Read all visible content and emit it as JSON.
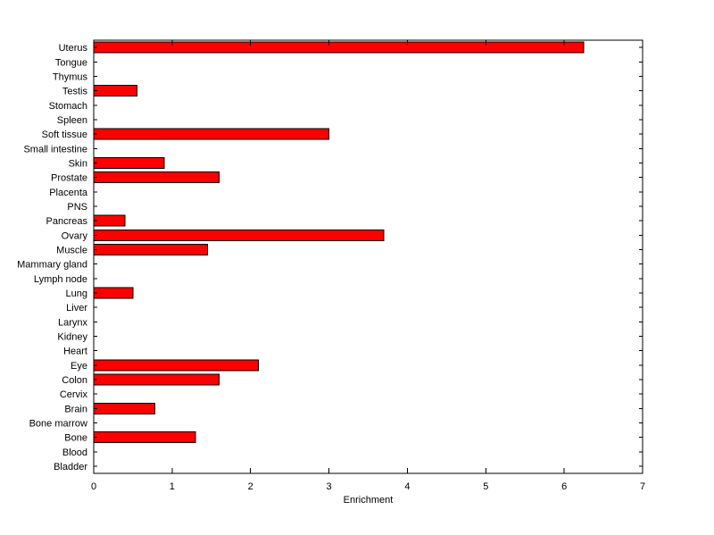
{
  "figure": {
    "background": "#ffffff"
  },
  "chart_data": {
    "type": "bar",
    "orientation": "horizontal",
    "title": "",
    "xlabel": "Enrichment",
    "ylabel": "",
    "categories": [
      "Uterus",
      "Tongue",
      "Thymus",
      "Testis",
      "Stomach",
      "Spleen",
      "Soft tissue",
      "Small intestine",
      "Skin",
      "Prostate",
      "Placenta",
      "PNS",
      "Pancreas",
      "Ovary",
      "Muscle",
      "Mammary gland",
      "Lymph node",
      "Lung",
      "Liver",
      "Larynx",
      "Kidney",
      "Heart",
      "Eye",
      "Colon",
      "Cervix",
      "Brain",
      "Bone marrow",
      "Bone",
      "Blood",
      "Bladder"
    ],
    "values": [
      6.25,
      0,
      0,
      0.55,
      0,
      0,
      3.0,
      0,
      0.9,
      1.6,
      0,
      0,
      0.4,
      3.7,
      1.45,
      0,
      0,
      0.5,
      0,
      0,
      0,
      0,
      2.1,
      1.6,
      0,
      0.78,
      0,
      1.3,
      0,
      0
    ],
    "xlim": [
      0,
      7
    ],
    "xticks": [
      0,
      1,
      2,
      3,
      4,
      5,
      6,
      7
    ],
    "bar_color": "#ff0000",
    "bar_edge_color": "#000000",
    "axis_color": "#000000",
    "grid": false,
    "legend": null
  }
}
